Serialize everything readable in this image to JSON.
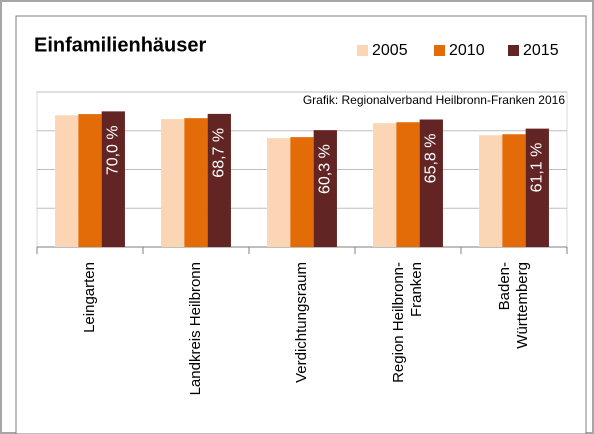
{
  "chart_data": {
    "type": "bar",
    "title": "Einfamilienhäuser",
    "annotation": "Grafik: Regionalverband Heilbronn-Franken 2016",
    "categories": [
      "Leingarten",
      "Landkreis Heilbronn",
      "Verdichtungsraum",
      "Region Heilbronn-\nFranken",
      "Baden-\nWürttemberg"
    ],
    "series": [
      {
        "name": "2005",
        "color": "#fcd5b5",
        "values": [
          68.0,
          66.0,
          56.2,
          63.9,
          57.7
        ]
      },
      {
        "name": "2010",
        "color": "#e36c09",
        "values": [
          68.6,
          66.5,
          56.7,
          64.4,
          58.2
        ]
      },
      {
        "name": "2015",
        "color": "#632523",
        "values": [
          70.0,
          68.7,
          60.3,
          65.8,
          61.1
        ],
        "value_labels": [
          "70,0 %",
          "68,7 %",
          "60,3 %",
          "65,8 %",
          "61,1 %"
        ]
      }
    ],
    "ylim": [
      0,
      80
    ],
    "yticks": [
      0,
      20,
      40,
      60,
      80
    ],
    "grid": true
  }
}
